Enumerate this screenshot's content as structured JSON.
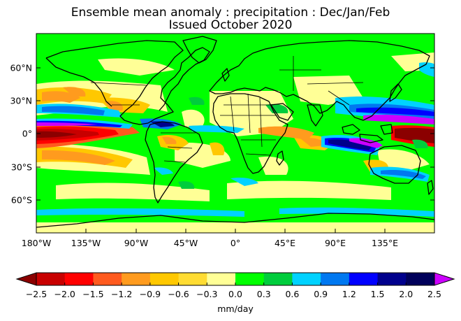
{
  "title_line1": "Ensemble mean anomaly : precipitation : Dec/Jan/Feb",
  "title_line2": "Issued October 2020",
  "map": {
    "lat_labels": [
      "60°N",
      "30°N",
      "0°",
      "30°S",
      "60°S"
    ],
    "lon_labels": [
      "180°W",
      "135°W",
      "90°W",
      "45°W",
      "0°",
      "45°E",
      "90°E",
      "135°E"
    ],
    "background_color": "#00ff00"
  },
  "colorbar": {
    "unit_label": "mm/day",
    "tick_labels": [
      "−2.5",
      "−2.0",
      "−1.5",
      "−1.2",
      "−0.9",
      "−0.6",
      "−0.3",
      "0.0",
      "0.3",
      "0.6",
      "0.9",
      "1.2",
      "1.5",
      "2.0",
      "2.5"
    ],
    "under_color": "#8b0000",
    "over_color": "#cc00ff",
    "colors": [
      "#c80000",
      "#ff0000",
      "#ff5a1e",
      "#ff9b1e",
      "#ffc800",
      "#ffdc32",
      "#ffff96",
      "#00ff00",
      "#00cd3c",
      "#00d2ff",
      "#0078f0",
      "#0000ff",
      "#00008c",
      "#00005a"
    ]
  }
}
